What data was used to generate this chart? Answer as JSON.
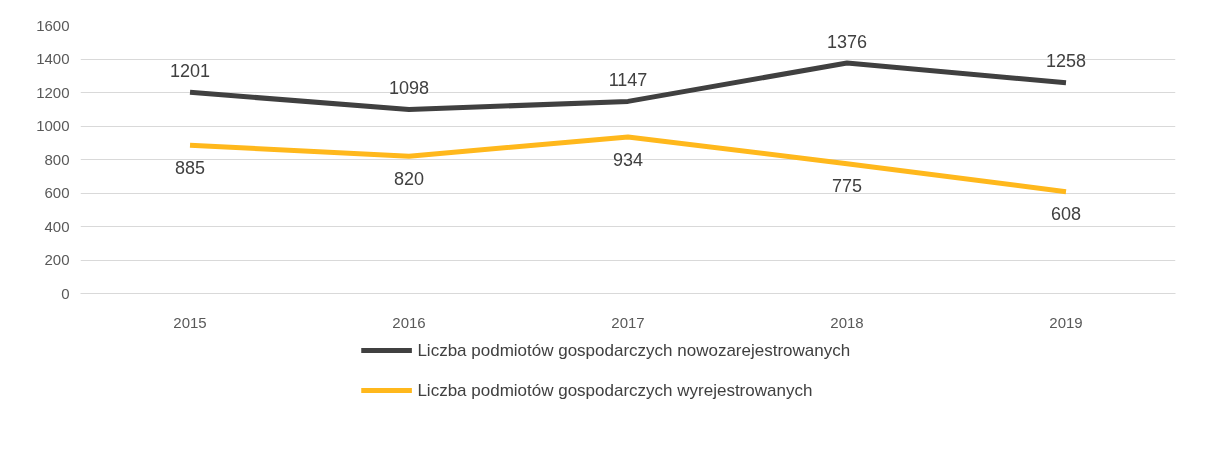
{
  "chart_data": {
    "type": "line",
    "categories": [
      "2015",
      "2016",
      "2017",
      "2018",
      "2019"
    ],
    "series": [
      {
        "name": "Liczba podmiotów gospodarczych nowozarejestrowanych",
        "color": "#404040",
        "values": [
          1201,
          1098,
          1147,
          1376,
          1258
        ]
      },
      {
        "name": "Liczba podmiotów gospodarczych wyrejestrowanych",
        "color": "#ffb81c",
        "values": [
          885,
          820,
          934,
          775,
          608
        ]
      }
    ],
    "ylim": [
      0,
      1600
    ],
    "yticks": [
      0,
      200,
      400,
      600,
      800,
      1000,
      1200,
      1400,
      1600
    ],
    "grid": "y",
    "legend": "bottom",
    "data_labels": true,
    "marker": "none",
    "line_style": "solid"
  }
}
